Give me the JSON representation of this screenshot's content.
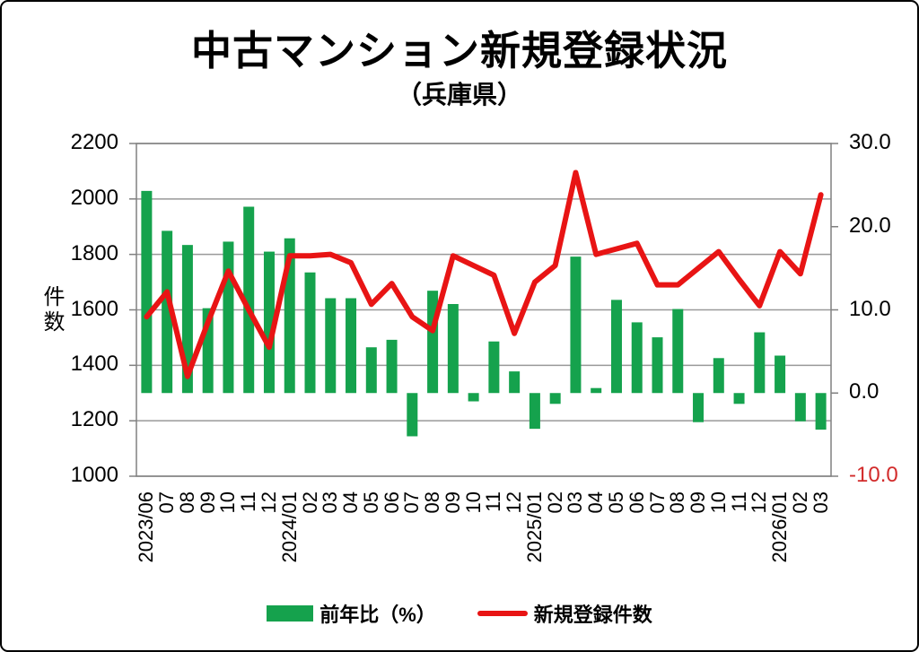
{
  "chart_data": {
    "type": "combo-bar-line",
    "title": "中古マンション新規登録状況",
    "subtitle": "（兵庫県）",
    "categories": [
      "2023/06",
      "07",
      "08",
      "09",
      "10",
      "11",
      "12",
      "2024/01",
      "02",
      "03",
      "04",
      "05",
      "06",
      "07",
      "08",
      "09",
      "10",
      "11",
      "12",
      "2025/01",
      "02",
      "03",
      "04",
      "05",
      "06",
      "07",
      "08",
      "09",
      "10",
      "11",
      "12",
      "2026/01",
      "02",
      "03"
    ],
    "series": [
      {
        "name": "前年比（%）",
        "type": "bar",
        "axis": "right",
        "unit": "%",
        "color": "#15A24D",
        "values": [
          24.3,
          19.5,
          17.8,
          10.2,
          18.2,
          22.4,
          17.0,
          18.6,
          14.5,
          11.4,
          11.4,
          5.5,
          6.4,
          -5.2,
          12.3,
          10.7,
          -1.0,
          6.2,
          2.6,
          -4.3,
          -1.3,
          16.4,
          0.6,
          11.2,
          8.5,
          6.7,
          10.1,
          -3.5,
          4.2,
          -1.3,
          7.3,
          4.5,
          -3.4,
          -4.4
        ]
      },
      {
        "name": "新規登録件数",
        "type": "line",
        "axis": "left",
        "unit": "件",
        "color": "#E81414",
        "values": [
          1575,
          1665,
          1360,
          1555,
          1740,
          1600,
          1465,
          1795,
          1795,
          1800,
          1770,
          1620,
          1695,
          1575,
          1525,
          1795,
          1760,
          1725,
          1515,
          1700,
          1760,
          2095,
          1800,
          1820,
          1840,
          1690,
          1690,
          1750,
          1810,
          1710,
          1615,
          1810,
          1730,
          2015
        ]
      }
    ],
    "left_axis": {
      "label": "件数",
      "min": 1000,
      "max": 2200,
      "ticks": [
        2200,
        2000,
        1800,
        1600,
        1400,
        1200,
        1000
      ]
    },
    "right_axis": {
      "min": -10,
      "max": 30,
      "ticks": [
        {
          "label": "30.0",
          "value": 30,
          "color": "#000000"
        },
        {
          "label": "20.0",
          "value": 20,
          "color": "#000000"
        },
        {
          "label": "10.0",
          "value": 10,
          "color": "#000000"
        },
        {
          "label": "0.0",
          "value": 0,
          "color": "#000000"
        },
        {
          "label": "-10.0",
          "value": -10,
          "color": "#D22B2B"
        }
      ]
    },
    "grid": {
      "horizontal": true,
      "vertical": false,
      "color": "#999999",
      "border_color": "#808080"
    },
    "legend_position": "bottom"
  }
}
